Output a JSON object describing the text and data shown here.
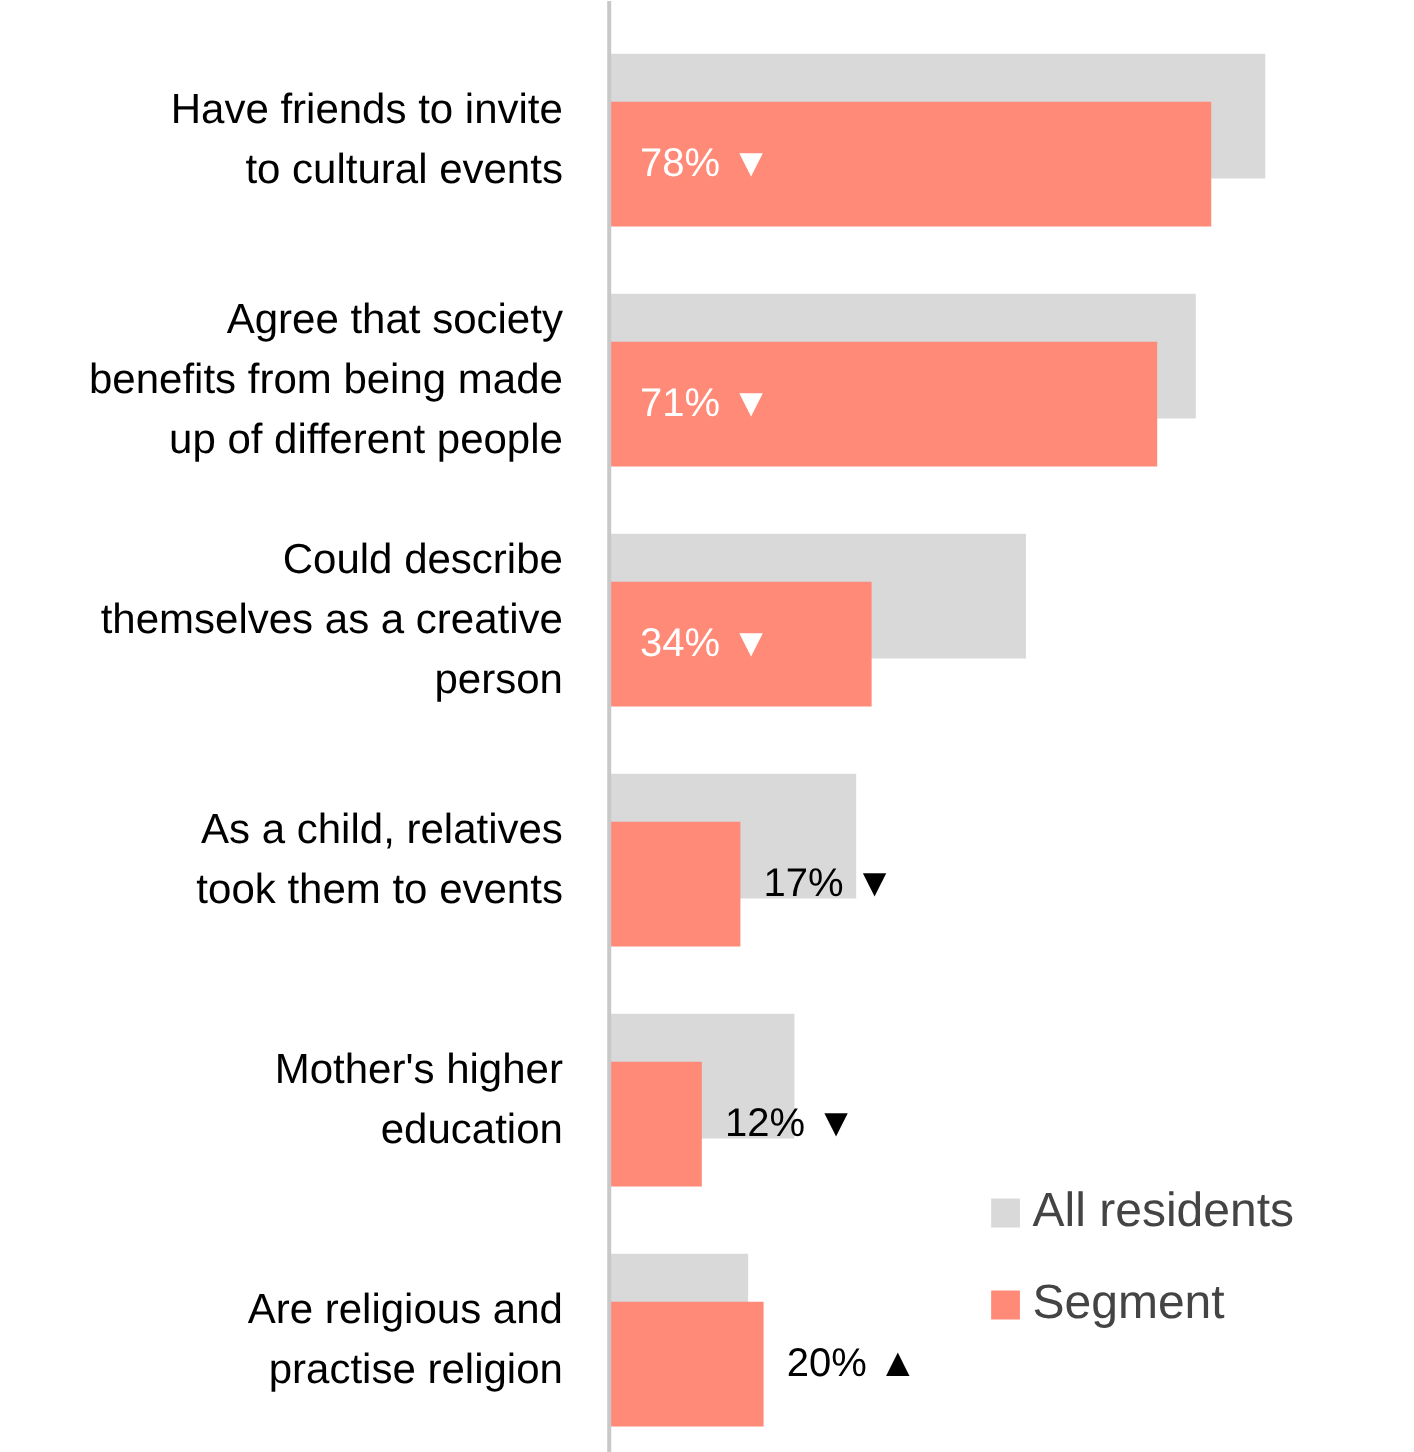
{
  "chart_data": {
    "type": "bar",
    "orientation": "horizontal",
    "categories": [
      "Have friends to invite to cultural events",
      "Agree that society benefits from being made up of different people",
      "Could describe themselves as a creative person",
      "As a child, relatives took them to events",
      "Mother's higher education",
      "Are religious and practise religion"
    ],
    "series": [
      {
        "name": "All residents",
        "color": "#d9d9d9",
        "values": [
          85,
          76,
          54,
          32,
          24,
          18
        ]
      },
      {
        "name": "Segment",
        "color": "#ff8a78",
        "values": [
          78,
          71,
          34,
          17,
          12,
          20
        ],
        "value_labels": [
          "78% ▼",
          "71% ▼",
          "34% ▼",
          "17% ▼",
          "12% ▼",
          "20% ▲"
        ]
      }
    ],
    "legend": "bottom right"
  }
}
